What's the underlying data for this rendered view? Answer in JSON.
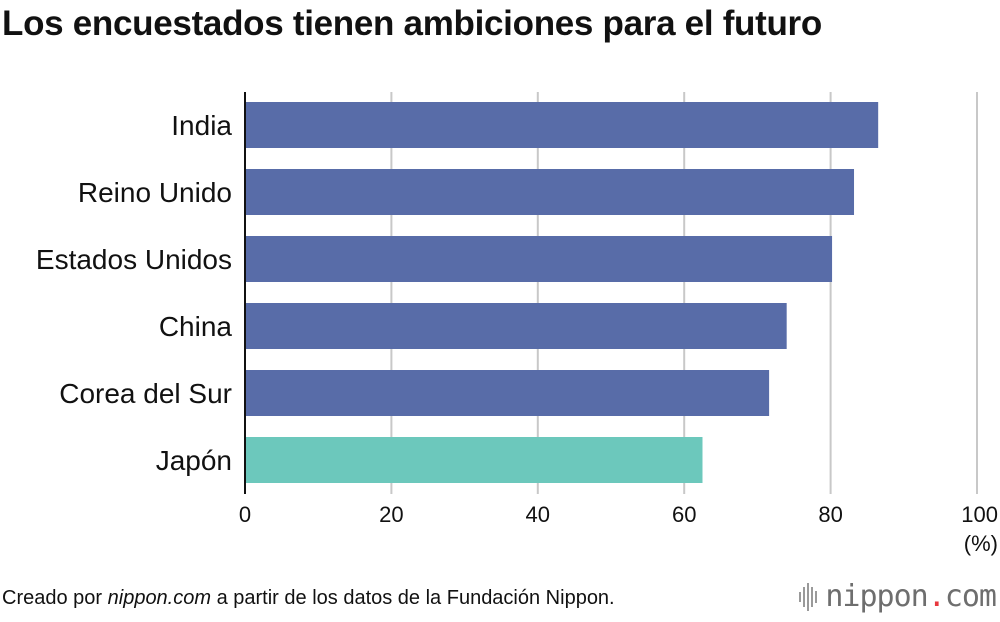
{
  "title": "Los encuestados tienen ambiciones para el futuro",
  "chart_data": {
    "type": "bar",
    "orientation": "horizontal",
    "categories": [
      "India",
      "Reino Unido",
      "Estados Unidos",
      "China",
      "Corea del Sur",
      "Japón"
    ],
    "values": [
      86.5,
      83.2,
      80.2,
      74.0,
      71.6,
      62.5
    ],
    "highlight": "Japón",
    "xlim": [
      0,
      100
    ],
    "xticks": [
      "0",
      "20",
      "40",
      "60",
      "80",
      "100"
    ],
    "unit": "(%)",
    "grid": true,
    "colors": {
      "bar": "#586ca8",
      "highlight": "#6cc8bc",
      "grid": "#c8c8c8"
    }
  },
  "source": {
    "prefix": "Creado por ",
    "site": "nippon.com",
    "suffix": " a partir de los datos de la Fundación Nippon."
  },
  "logo": {
    "name": "nippon",
    "dot": ".",
    "tld": "com"
  }
}
